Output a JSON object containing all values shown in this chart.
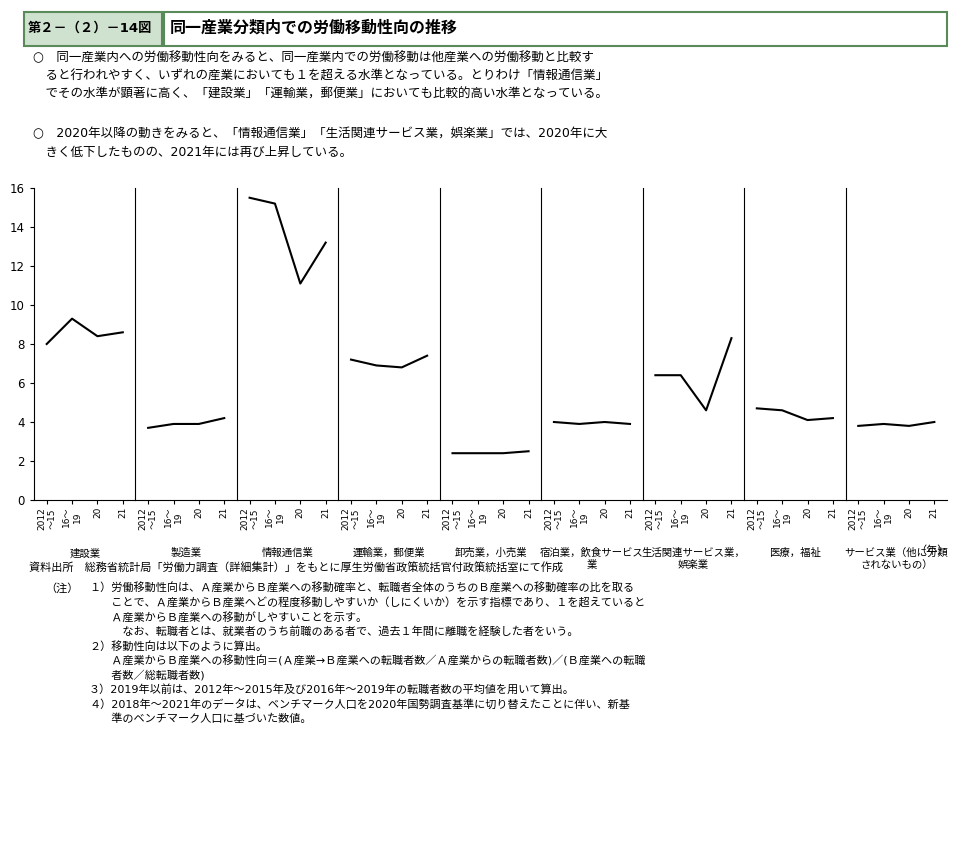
{
  "title_box": "第２－（２）－14図",
  "title_main": "同一産業分類内での労働移動性向の推移",
  "bullet1_lines": [
    "○　同一産業内への労働移動性向をみると、同一産業内での労働移動は他産業への労働移動と比較す",
    "　ると行われやすく、いずれの産業においても１を超える水準となっている。とりわけ「情報通信業」",
    "　でその水準が顕著に高く、「建設業」「運輸業，郵便業」においても比較的高い水準となっている。"
  ],
  "bullet2_lines": [
    "○　2020年以降の動きをみると、「情報通信業」「生活関連サービス業，娯楽業」では、2020年に大",
    "　きく低下したものの、2021年には再び上昇している。"
  ],
  "categories": [
    "建設業",
    "製造業",
    "情報通信業",
    "運輸業，郵便業",
    "卸売業，小売業",
    "宿泊業，飲食サービス\n業",
    "生活関連サービス業，\n娯楽業",
    "医療，福祉",
    "サービス業（他に分類\nされないもの）"
  ],
  "x_labels": [
    "2012\n〜15",
    "16〜\n19",
    "20",
    "21"
  ],
  "series_data": [
    [
      8.0,
      9.3,
      8.4,
      8.6
    ],
    [
      3.7,
      3.9,
      3.9,
      4.2
    ],
    [
      15.5,
      15.2,
      11.1,
      13.2
    ],
    [
      7.2,
      6.9,
      6.8,
      7.4
    ],
    [
      2.4,
      2.4,
      2.4,
      2.5
    ],
    [
      4.0,
      3.9,
      4.0,
      3.9
    ],
    [
      6.4,
      6.4,
      4.6,
      8.3
    ],
    [
      4.7,
      4.6,
      4.1,
      4.2
    ],
    [
      3.8,
      3.9,
      3.8,
      4.0
    ]
  ],
  "ylim": [
    0,
    16
  ],
  "yticks": [
    0,
    2,
    4,
    6,
    8,
    10,
    12,
    14,
    16
  ],
  "line_color": "#000000",
  "bg_color": "#ffffff",
  "title_box_bg": "#cfe2cf",
  "title_box_border": "#5a8a5a",
  "source_text": "資料出所　総務省統計局「労働力調査（詳細集計）」をもとに厚生労働省政策統括官付政策統括室にて作成",
  "note_intro": "（注）",
  "notes": [
    "１）労働移動性向は、Ａ産業からＢ産業への移動確率と、転職者全体のうちのＢ産業への移動確率の比を取る",
    "　　ことで、Ａ産業からＢ産業へどの程度移動しやすいか（しにくいか）を示す指標であり、１を超えていると",
    "　　Ａ産業からＢ産業への移動がしやすいことを示す。",
    "　　　なお、転職者とは、就業者のうち前職のある者で、過去１年間に離職を経験した者をいう。",
    "２）移動性向は以下のように算出。",
    "　　Ａ産業からＢ産業への移動性向＝(Ａ産業→Ｂ産業への転職者数／Ａ産業からの転職者数)／(Ｂ産業への転職",
    "　　者数／総転職者数)",
    "３）2019年以前は、2012年〜2015年及び2016年〜2019年の転職者数の平均値を用いて算出。",
    "４）2018年〜2021年のデータは、ベンチマーク人口を2020年国勢調査基準に切り替えたことに伴い、新基",
    "　　準のベンチマーク人口に基づいた数値。"
  ]
}
